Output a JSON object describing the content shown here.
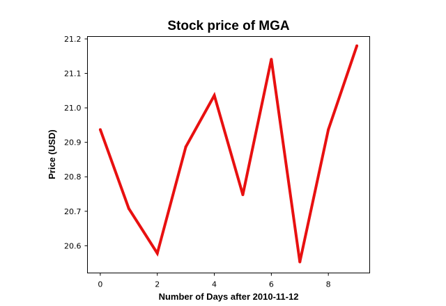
{
  "chart_data": {
    "type": "line",
    "title": "Stock price of MGA",
    "xlabel": "Number of Days after 2010-11-12",
    "ylabel": "Price (USD)",
    "x": [
      0,
      1,
      2,
      3,
      4,
      5,
      6,
      7,
      8,
      9
    ],
    "series": [
      {
        "values": [
          20.937,
          20.708,
          20.578,
          20.887,
          21.036,
          20.748,
          21.141,
          20.553,
          20.937,
          21.18
        ],
        "color": "#e81010"
      }
    ],
    "xlim": [
      -0.45,
      9.45
    ],
    "ylim": [
      20.521,
      21.207
    ],
    "xticks": [
      0,
      2,
      4,
      6,
      8
    ],
    "yticks": [
      20.6,
      20.7,
      20.8,
      20.9,
      21.0,
      21.1,
      21.2
    ],
    "xtick_labels": [
      "0",
      "2",
      "4",
      "6",
      "8"
    ],
    "ytick_labels": [
      "20.6",
      "20.7",
      "20.8",
      "20.9",
      "21.0",
      "21.1",
      "21.2"
    ],
    "grid": false,
    "legend": "none"
  }
}
